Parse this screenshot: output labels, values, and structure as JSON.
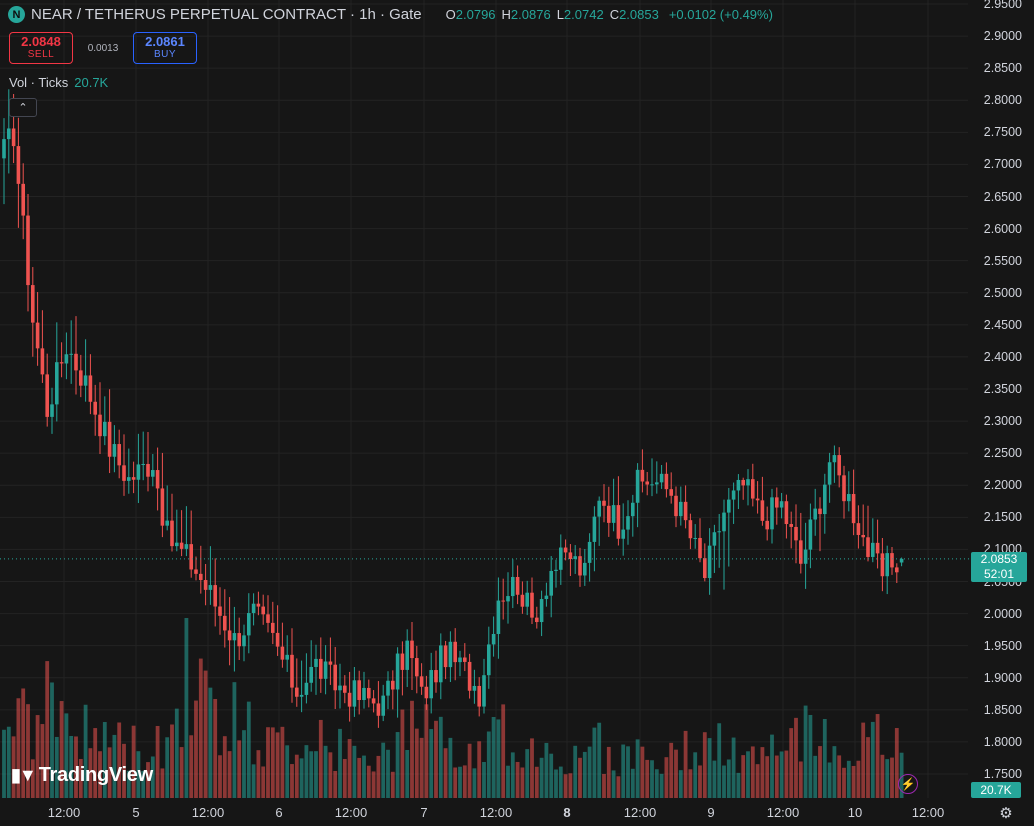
{
  "header": {
    "symbol_icon": "N",
    "title": "NEAR / TETHERUS PERPETUAL CONTRACT · 1h · Gate",
    "ohlc": {
      "o_label": "O",
      "o": "2.0796",
      "h_label": "H",
      "h": "2.0876",
      "l_label": "L",
      "l": "2.0742",
      "c_label": "C",
      "c": "2.0853",
      "change": "+0.0102 (+0.49%)"
    }
  },
  "trade": {
    "sell_price": "2.0848",
    "sell_label": "SELL",
    "spread": "0.0013",
    "buy_price": "2.0861",
    "buy_label": "BUY"
  },
  "volume_legend": {
    "label": "Vol · Ticks",
    "value": "20.7K"
  },
  "collapse_icon": "chevron-up-icon",
  "price_axis": [
    "2.9500",
    "2.9000",
    "2.8500",
    "2.8000",
    "2.7500",
    "2.7000",
    "2.6500",
    "2.6000",
    "2.5500",
    "2.5000",
    "2.4500",
    "2.4000",
    "2.3500",
    "2.3000",
    "2.2500",
    "2.2000",
    "2.1500",
    "2.1000",
    "2.0500",
    "2.0000",
    "1.9500",
    "1.9000",
    "1.8500",
    "1.8000",
    "1.7500"
  ],
  "time_axis": [
    {
      "label": "12:00",
      "bold": false
    },
    {
      "label": "5",
      "bold": false
    },
    {
      "label": "12:00",
      "bold": false
    },
    {
      "label": "6",
      "bold": false
    },
    {
      "label": "12:00",
      "bold": false
    },
    {
      "label": "7",
      "bold": false
    },
    {
      "label": "12:00",
      "bold": false
    },
    {
      "label": "8",
      "bold": true
    },
    {
      "label": "12:00",
      "bold": false
    },
    {
      "label": "9",
      "bold": false
    },
    {
      "label": "12:00",
      "bold": false
    },
    {
      "label": "10",
      "bold": false
    },
    {
      "label": "12:00",
      "bold": false
    }
  ],
  "last_price": {
    "price": "2.0853",
    "countdown": "52:01"
  },
  "volume_tag": "20.7K",
  "branding": "TradingView",
  "colors": {
    "up": "#26a69a",
    "down": "#ef5350",
    "background": "#161616",
    "grid": "#232323"
  },
  "chart_data": {
    "type": "candlestick",
    "timeframe": "1h",
    "ylim": [
      1.72,
      2.95
    ],
    "grid": true,
    "volume_overlay": true,
    "anchors": [
      [
        0,
        2.72,
        2.8,
        2.62,
        0.7
      ],
      [
        2,
        2.75,
        2.82,
        2.68,
        0.6
      ],
      [
        4,
        2.6,
        2.7,
        2.5,
        0.9
      ],
      [
        6,
        2.46,
        2.52,
        2.4,
        0.6
      ],
      [
        9,
        2.32,
        2.4,
        2.29,
        0.7
      ],
      [
        13,
        2.42,
        2.48,
        2.36,
        0.6
      ],
      [
        17,
        2.36,
        2.44,
        2.32,
        0.5
      ],
      [
        22,
        2.26,
        2.32,
        2.22,
        0.5
      ],
      [
        26,
        2.21,
        2.28,
        2.17,
        0.4
      ],
      [
        31,
        2.24,
        2.3,
        2.19,
        0.4
      ],
      [
        34,
        2.12,
        2.22,
        2.1,
        0.5
      ],
      [
        39,
        2.08,
        2.14,
        2.06,
        0.9
      ],
      [
        43,
        2.03,
        2.1,
        2.0,
        0.7
      ],
      [
        48,
        1.96,
        2.02,
        1.89,
        0.6
      ],
      [
        52,
        2.0,
        2.05,
        1.96,
        0.5
      ],
      [
        56,
        1.96,
        2.02,
        1.93,
        0.4
      ],
      [
        61,
        1.88,
        1.96,
        1.85,
        0.5
      ],
      [
        65,
        1.92,
        1.97,
        1.87,
        0.4
      ],
      [
        69,
        1.89,
        1.93,
        1.85,
        0.4
      ],
      [
        74,
        1.87,
        1.91,
        1.84,
        0.3
      ],
      [
        79,
        1.86,
        1.9,
        1.84,
        0.3
      ],
      [
        84,
        1.95,
        1.97,
        1.88,
        0.5
      ],
      [
        87,
        1.87,
        1.93,
        1.84,
        0.5
      ],
      [
        92,
        1.94,
        1.96,
        1.9,
        0.4
      ],
      [
        96,
        1.91,
        1.94,
        1.88,
        0.3
      ],
      [
        99,
        1.88,
        1.91,
        1.86,
        0.3
      ],
      [
        103,
        2.03,
        2.08,
        1.98,
        0.5
      ],
      [
        107,
        2.05,
        2.1,
        2.02,
        0.4
      ],
      [
        110,
        1.99,
        2.04,
        1.96,
        0.4
      ],
      [
        114,
        2.07,
        2.1,
        2.03,
        0.4
      ],
      [
        118,
        2.09,
        2.11,
        2.05,
        0.3
      ],
      [
        121,
        2.06,
        2.09,
        2.04,
        0.3
      ],
      [
        124,
        2.19,
        2.21,
        2.12,
        0.4
      ],
      [
        128,
        2.14,
        2.2,
        2.11,
        0.3
      ],
      [
        132,
        2.2,
        2.23,
        2.15,
        0.4
      ],
      [
        135,
        2.21,
        2.26,
        2.18,
        0.3
      ],
      [
        139,
        2.19,
        2.22,
        2.16,
        0.3
      ],
      [
        142,
        2.14,
        2.17,
        2.1,
        0.4
      ],
      [
        146,
        2.06,
        2.1,
        2.05,
        0.4
      ],
      [
        150,
        2.16,
        2.19,
        2.05,
        0.4
      ],
      [
        154,
        2.2,
        2.21,
        2.15,
        0.3
      ],
      [
        158,
        2.15,
        2.21,
        2.13,
        0.3
      ],
      [
        162,
        2.17,
        2.19,
        2.13,
        0.4
      ],
      [
        166,
        2.08,
        2.13,
        2.04,
        0.5
      ],
      [
        170,
        2.18,
        2.22,
        2.09,
        0.4
      ],
      [
        172,
        2.24,
        2.26,
        2.19,
        0.4
      ],
      [
        176,
        2.18,
        2.22,
        2.14,
        0.4
      ],
      [
        180,
        2.1,
        2.16,
        2.08,
        0.4
      ],
      [
        183,
        2.06,
        2.11,
        2.02,
        0.5
      ],
      [
        185,
        2.08,
        2.1,
        2.05,
        0.4
      ],
      [
        187,
        2.0853,
        2.0876,
        2.0742,
        0.35
      ]
    ]
  }
}
